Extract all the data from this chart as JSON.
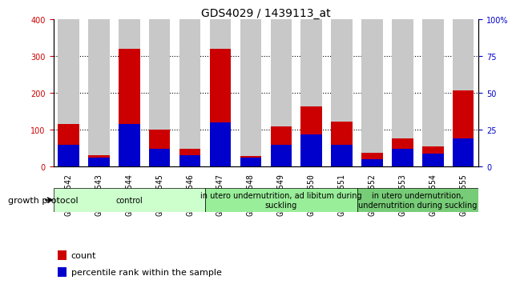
{
  "title": "GDS4029 / 1439113_at",
  "categories": [
    "GSM402542",
    "GSM402543",
    "GSM402544",
    "GSM402545",
    "GSM402546",
    "GSM402547",
    "GSM402548",
    "GSM402549",
    "GSM402550",
    "GSM402551",
    "GSM402552",
    "GSM402553",
    "GSM402554",
    "GSM402555"
  ],
  "count_values": [
    115,
    32,
    320,
    100,
    48,
    320,
    30,
    110,
    163,
    122,
    37,
    78,
    55,
    207
  ],
  "percentile_values": [
    15,
    6,
    29,
    12,
    8,
    30,
    6,
    15,
    22,
    15,
    5,
    12,
    9,
    19
  ],
  "count_color": "#cc0000",
  "percentile_color": "#0000cc",
  "bar_bg_color": "#c8c8c8",
  "ylim_left": [
    0,
    400
  ],
  "ylim_right": [
    0,
    100
  ],
  "yticks_left": [
    0,
    100,
    200,
    300,
    400
  ],
  "yticks_right": [
    0,
    25,
    50,
    75,
    100
  ],
  "grid_yticks": [
    100,
    200,
    300
  ],
  "group_labels": [
    "control",
    "in utero undernutrition, ad libitum during\nsuckling",
    "in utero undernutrition,\nundernutrition during suckling"
  ],
  "group_ranges": [
    [
      0,
      4
    ],
    [
      5,
      9
    ],
    [
      10,
      13
    ]
  ],
  "group_colors_light": [
    "#ccffcc",
    "#99ee99",
    "#77cc77"
  ],
  "growth_protocol_label": "growth protocol",
  "legend_count": "count",
  "legend_percentile": "percentile rank within the sample",
  "title_fontsize": 10,
  "tick_fontsize": 7,
  "label_fontsize": 8,
  "group_fontsize": 7,
  "right_tick_label_100": "100%"
}
